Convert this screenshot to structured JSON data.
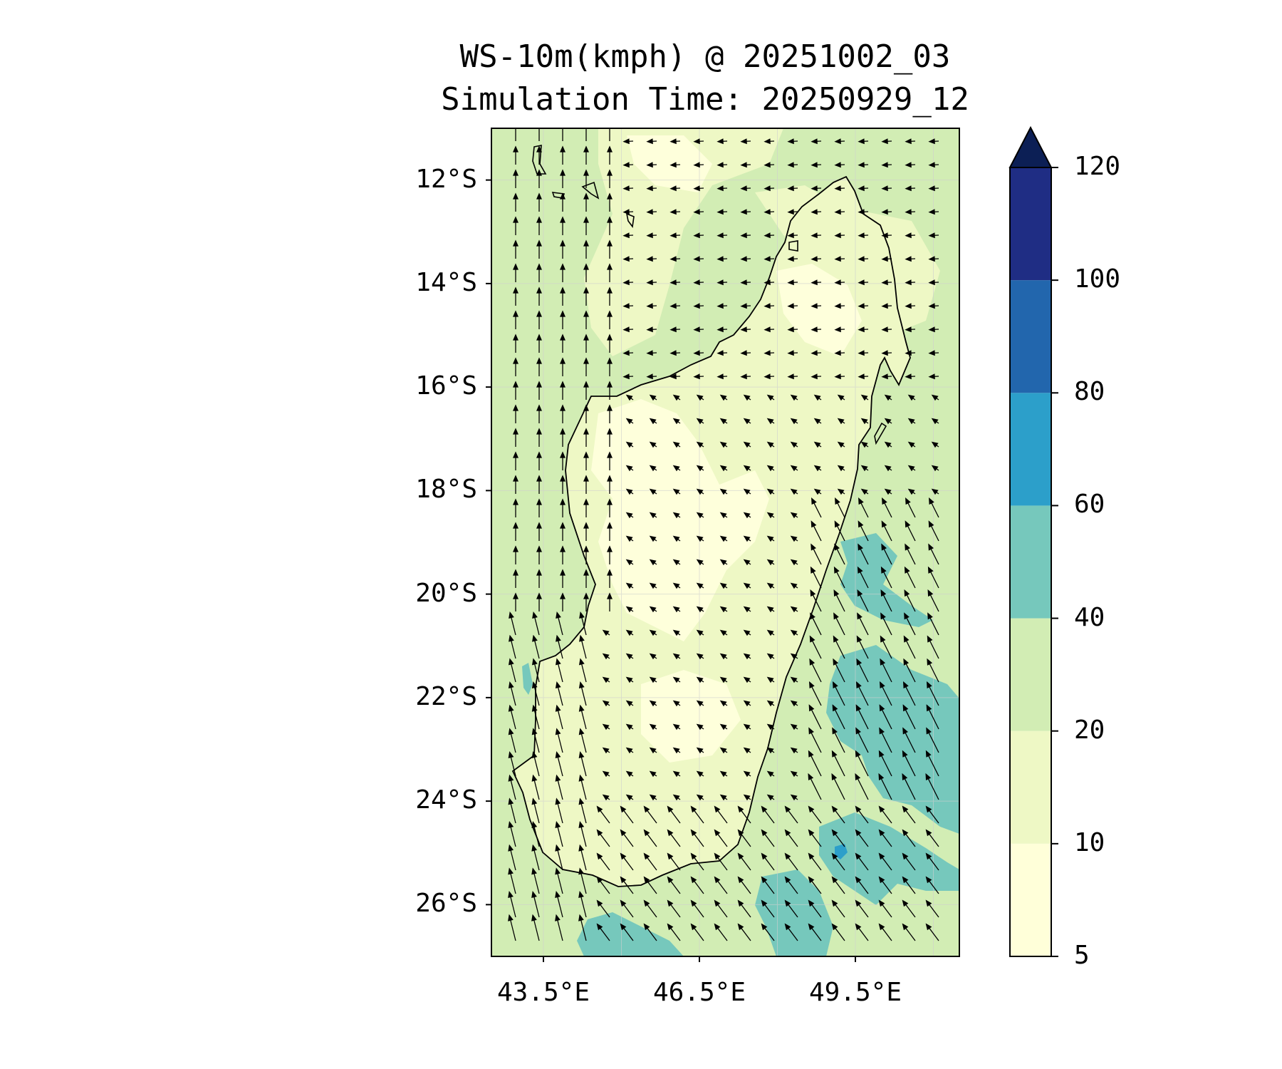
{
  "title": {
    "line1": "WS-10m(kmph) @ 20251002_03",
    "line2": "Simulation Time: 20250929_12"
  },
  "map": {
    "variable": "WS-10m(kmph)",
    "lat_ticks": [
      "12°S",
      "14°S",
      "16°S",
      "18°S",
      "20°S",
      "22°S",
      "24°S",
      "26°S"
    ],
    "lon_ticks": [
      "43.5°E",
      "46.5°E",
      "49.5°E"
    ],
    "extent": {
      "lon_min": 42.5,
      "lon_max": 51.5,
      "lat_min": -27,
      "lat_max": -11
    },
    "colors": {
      "land_low": "#feffdb",
      "land_mid": "#eef8c5",
      "sea_20_40": "#d2edb4",
      "strong_40_60": "#76c8bc",
      "gust_60_80": "#2c9fca",
      "coast": "#000000",
      "arrow": "#000000"
    }
  },
  "colorbar": {
    "labels": [
      "120",
      "100",
      "80",
      "60",
      "40",
      "20",
      "10",
      "5"
    ],
    "bins": [
      {
        "from": 5,
        "to": 10,
        "color": "#ffffd9"
      },
      {
        "from": 10,
        "to": 20,
        "color": "#eef8c5"
      },
      {
        "from": 20,
        "to": 40,
        "color": "#d2edb4"
      },
      {
        "from": 40,
        "to": 60,
        "color": "#76c8bc"
      },
      {
        "from": 60,
        "to": 80,
        "color": "#2c9fca"
      },
      {
        "from": 80,
        "to": 100,
        "color": "#2266ad"
      },
      {
        "from": 100,
        "to": 120,
        "color": "#1f2d84"
      }
    ],
    "extend_color": "#0c1f55"
  }
}
